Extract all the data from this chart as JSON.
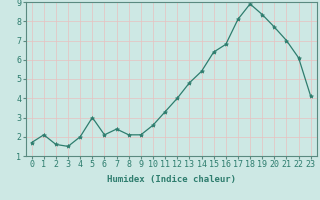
{
  "x": [
    0,
    1,
    2,
    3,
    4,
    5,
    6,
    7,
    8,
    9,
    10,
    11,
    12,
    13,
    14,
    15,
    16,
    17,
    18,
    19,
    20,
    21,
    22,
    23
  ],
  "y": [
    1.7,
    2.1,
    1.6,
    1.5,
    2.0,
    3.0,
    2.1,
    2.4,
    2.1,
    2.1,
    2.6,
    3.3,
    4.0,
    4.8,
    5.4,
    6.4,
    6.8,
    8.1,
    8.9,
    8.35,
    7.7,
    7.0,
    6.1,
    4.1
  ],
  "line_color": "#2e7d6e",
  "marker": "*",
  "marker_size": 3,
  "bg_color": "#cde8e4",
  "grid_color": "#e8c0c0",
  "axis_color": "#2e7d6e",
  "border_color": "#5a8a80",
  "xlabel": "Humidex (Indice chaleur)",
  "ylim": [
    1,
    9
  ],
  "xlim_min": -0.5,
  "xlim_max": 23.5,
  "yticks": [
    1,
    2,
    3,
    4,
    5,
    6,
    7,
    8,
    9
  ],
  "xticks": [
    0,
    1,
    2,
    3,
    4,
    5,
    6,
    7,
    8,
    9,
    10,
    11,
    12,
    13,
    14,
    15,
    16,
    17,
    18,
    19,
    20,
    21,
    22,
    23
  ],
  "xlabel_fontsize": 6.5,
  "tick_fontsize": 6.0,
  "linewidth": 0.9
}
